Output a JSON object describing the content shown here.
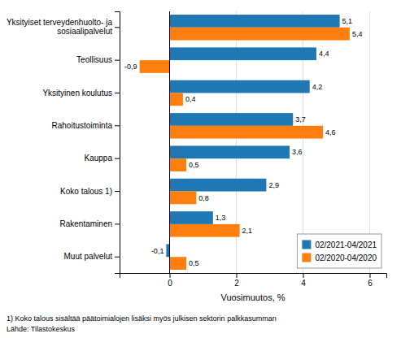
{
  "chart_data": {
    "type": "bar",
    "orientation": "horizontal",
    "categories": [
      "Muut palvelut",
      "Rakentaminen",
      "Koko talous 1)",
      "Kauppa",
      "Rahoitustoiminta",
      "Yksityinen koulutus",
      "Teollisuus",
      "Yksityiset terveydenhuolto- ja\nsosiaalipalvelut"
    ],
    "series": [
      {
        "name": "02/2021-04/2021",
        "values": [
          -0.1,
          1.3,
          2.9,
          3.6,
          3.7,
          4.2,
          4.4,
          5.1
        ],
        "value_labels": [
          "-0,1",
          "1,3",
          "2,9",
          "3,6",
          "3,7",
          "4,2",
          "4,4",
          "5,1"
        ]
      },
      {
        "name": "02/2020-04/2020",
        "values": [
          0.5,
          2.1,
          0.8,
          0.5,
          4.6,
          0.4,
          -0.9,
          5.4
        ],
        "value_labels": [
          "0,5",
          "2,1",
          "0,8",
          "0,5",
          "4,6",
          "0,4",
          "-0,9",
          "5,4"
        ]
      }
    ],
    "xlabel": "Vuosimuutos, %",
    "xlim": [
      -1.5,
      6.5
    ],
    "xticks": [
      0,
      2,
      4,
      6
    ],
    "grid": true,
    "legend": "lower right",
    "data_labels": true,
    "annotations": [
      "1) Koko talous sisältää päätoimialojen lisäksi myös julkisen sektorin palkkasumman",
      "Lähde: Tilastokeskus"
    ]
  }
}
